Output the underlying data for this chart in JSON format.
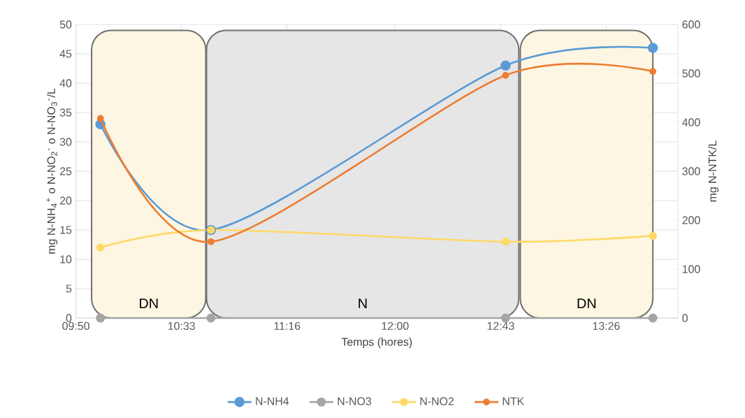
{
  "chart_data": {
    "type": "line",
    "xlabel": "Temps (hores)",
    "ylabel": "mg N-NH$_{4}$$^{+}$ o N-NO$_{2}$$^{-}$ o N-NO$_{3}$$^{-}$/L",
    "y2label": "mg N-NTK/L",
    "x": [
      10.0,
      10.75,
      12.75,
      13.75
    ],
    "series": [
      {
        "name": "N-NH4",
        "color": "#5b9bd5",
        "values": [
          33,
          15,
          43,
          46
        ]
      },
      {
        "name": "N-NO3",
        "color": "#a5a5a5",
        "values": [
          0,
          0,
          0,
          0
        ]
      },
      {
        "name": "N-NO2",
        "color": "#ffd966",
        "values": [
          12,
          15,
          13,
          14
        ]
      },
      {
        "name": "NTK",
        "color": "#ed7d31",
        "values": [
          408,
          156,
          496,
          504
        ],
        "axis": "y2"
      }
    ],
    "xlim": [
      9.8333,
      13.92
    ],
    "xticks": [
      {
        "value": 9.8333,
        "label": "09:50"
      },
      {
        "value": 10.55,
        "label": "10:33"
      },
      {
        "value": 11.2667,
        "label": "11:16"
      },
      {
        "value": 12.0,
        "label": "12:00"
      },
      {
        "value": 12.7167,
        "label": "12:43"
      },
      {
        "value": 13.4333,
        "label": "13:26"
      }
    ],
    "ylim": [
      0,
      50
    ],
    "yticks": [
      0,
      5,
      10,
      15,
      20,
      25,
      30,
      35,
      40,
      45,
      50
    ],
    "y2lim": [
      0,
      600
    ],
    "y2ticks": [
      0,
      100,
      200,
      300,
      400,
      500,
      600
    ],
    "bands": [
      {
        "axis": "x",
        "from": 9.94,
        "to": 10.715,
        "label": "DN",
        "color": "#fdf6e3"
      },
      {
        "axis": "x",
        "from": 10.72,
        "to": 12.84,
        "label": "N",
        "color": "#e6e6e6"
      },
      {
        "axis": "x",
        "from": 12.85,
        "to": 13.75,
        "label": "DN",
        "color": "#fdf6e3"
      }
    ],
    "grid": true,
    "legend": "bottom",
    "marker": "circle",
    "line_style": "solid"
  }
}
